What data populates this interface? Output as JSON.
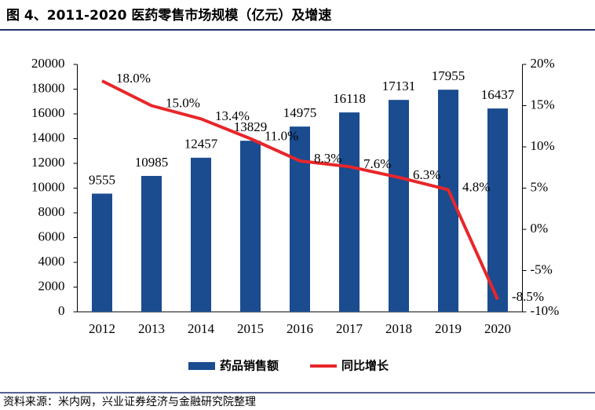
{
  "chart_data": {
    "type": "bar",
    "title": "图 4、2011-2020 医药零售市场规模（亿元）及增速",
    "source": "资料来源：米内网，兴业证券经济与金融研究院整理",
    "categories": [
      "2012",
      "2013",
      "2014",
      "2015",
      "2016",
      "2017",
      "2018",
      "2019",
      "2020"
    ],
    "series": [
      {
        "name": "药品销售额",
        "type": "bar",
        "color": "#1a4c8f",
        "values": [
          9555,
          10985,
          12457,
          13829,
          14975,
          16118,
          17131,
          17955,
          16437
        ]
      },
      {
        "name": "同比增长",
        "type": "line",
        "axis": "y2",
        "color": "#e8262a",
        "values": [
          18.0,
          15.0,
          13.4,
          11.0,
          8.3,
          7.6,
          6.3,
          4.8,
          -8.5
        ],
        "value_labels": [
          "18.0%",
          "15.0%",
          "13.4%",
          "11.0%",
          "8.3%",
          "7.6%",
          "6.3%",
          "4.8%",
          "-8.5%"
        ]
      }
    ],
    "ylim": [
      0,
      20000
    ],
    "yticks": [
      0,
      2000,
      4000,
      6000,
      8000,
      10000,
      12000,
      14000,
      16000,
      18000,
      20000
    ],
    "y2lim": [
      -10,
      20
    ],
    "y2ticks": [
      {
        "value": -10,
        "label": "-10%"
      },
      {
        "value": -5,
        "label": "-5%"
      },
      {
        "value": 0,
        "label": "0%"
      },
      {
        "value": 5,
        "label": "5%"
      },
      {
        "value": 10,
        "label": "10%"
      },
      {
        "value": 15,
        "label": "15%"
      },
      {
        "value": 20,
        "label": "20%"
      }
    ],
    "grid": false,
    "legend": "bottom"
  }
}
